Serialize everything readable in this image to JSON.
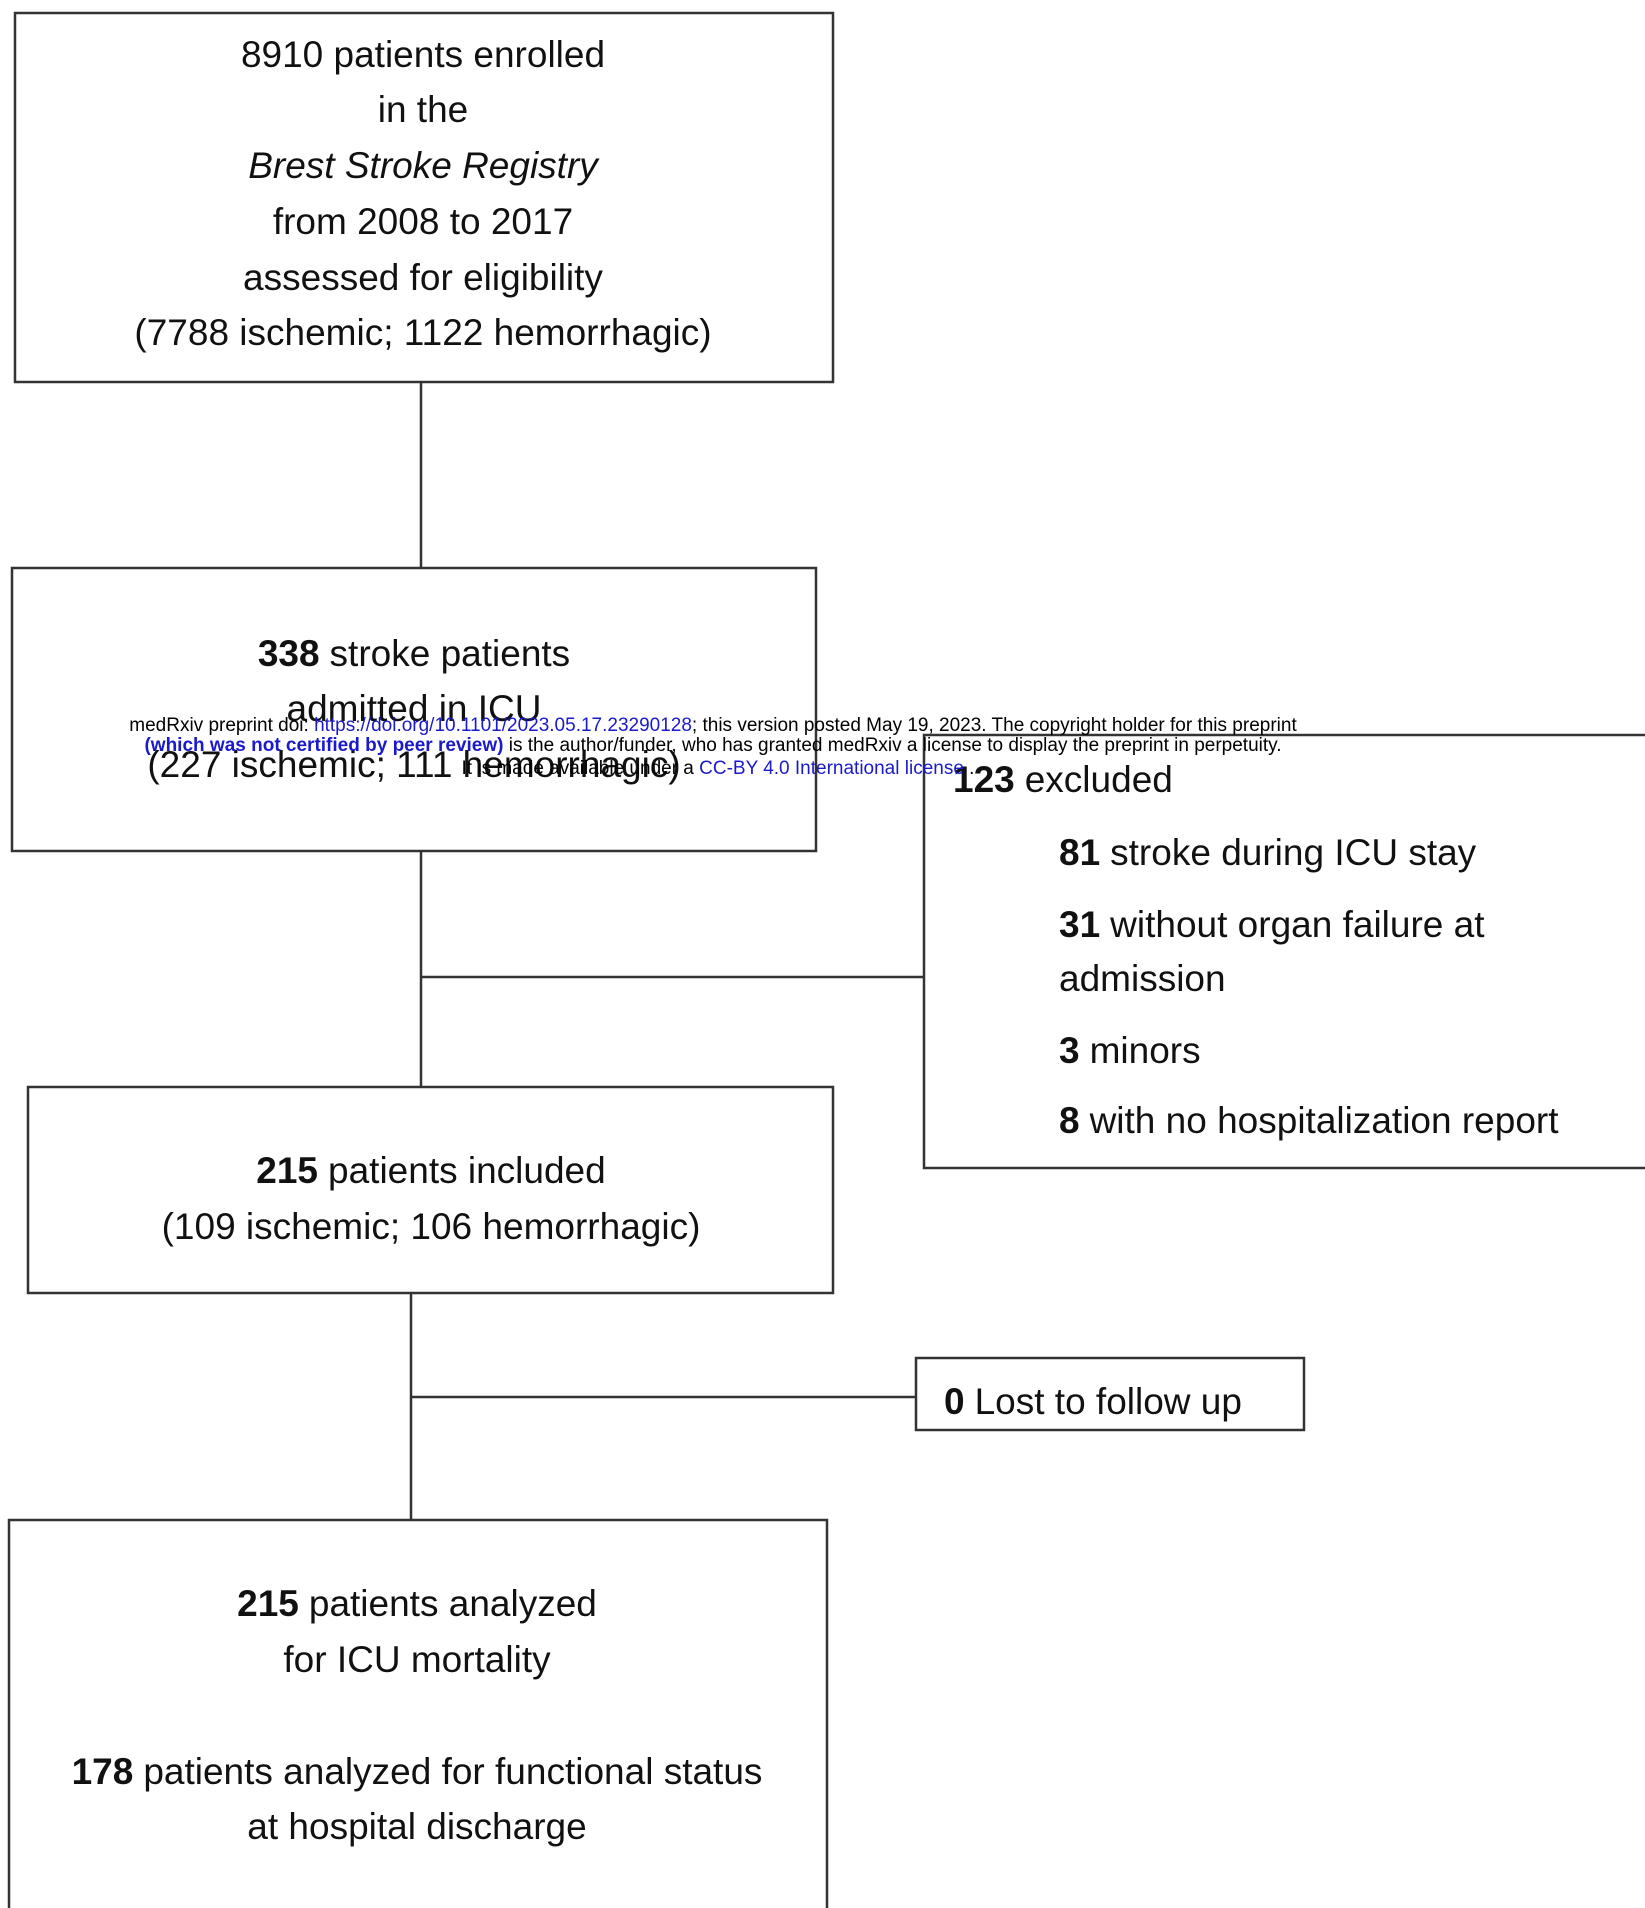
{
  "header": {
    "line1": {
      "prefix": "medRxiv preprint doi: ",
      "doi": "https://doi.org/10.1101/2023.05.17.23290128",
      "suffix": "; this version posted May 19, 2023. The copyright holder for this preprint"
    },
    "line2": {
      "bold": "(which was not certified by peer review)",
      "rest": " is the author/funder, who has granted medRxiv a license to display the preprint in perpetuity."
    },
    "line3": {
      "prefix": "It is made available under a ",
      "license": "CC-BY 4.0 International license",
      "suffix": " ."
    }
  },
  "nodes": [
    {
      "lines": [
        "8910 patients enrolled",
        "in the",
        {
          "italic": "Brest Stroke Registry"
        },
        "from 2008 to 2017",
        "assessed for eligibility",
        "(7788 ischemic; 1122 hemorrhagic)"
      ]
    },
    {
      "lines": [
        {
          "bold": "338",
          "text": "stroke patients"
        },
        "admitted in ICU",
        "(227 ischemic; 111 hemorrhagic)"
      ]
    },
    {
      "lines": [
        {
          "bold": "123",
          "text": "excluded"
        },
        {
          "bold": "81",
          "text": "stroke during ICU stay"
        },
        {
          "bold": "31",
          "text": "without organ failure at"
        },
        "admission",
        {
          "bold": "3",
          "text": "minors"
        },
        {
          "bold": "8",
          "text": "with no hospitalization report"
        }
      ]
    },
    {
      "lines": [
        {
          "bold": "215",
          "text": "patients included"
        },
        "(109 ischemic; 106 hemorrhagic)"
      ]
    },
    {
      "lines": [
        {
          "bold": "0",
          "text": "Lost to follow up"
        }
      ]
    },
    {
      "lines": [
        {
          "bold": "215",
          "text": "patients analyzed"
        },
        "for ICU mortality",
        {
          "bold": "178",
          "text": "patients analyzed for functional status"
        },
        "at hospital discharge"
      ]
    }
  ]
}
